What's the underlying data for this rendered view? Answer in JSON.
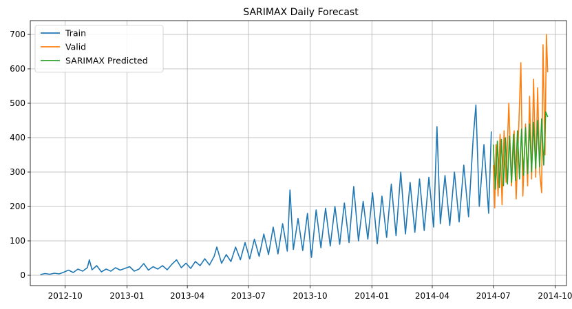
{
  "chart_data": {
    "type": "line",
    "title": "SARIMAX Daily Forecast",
    "xlabel": "",
    "ylabel": "",
    "x_type": "date",
    "xlim": [
      "2012-08-10",
      "2014-10-18"
    ],
    "ylim": [
      -30,
      740
    ],
    "grid": true,
    "legend_position": "top-left",
    "x_ticks": [
      "2012-10-01",
      "2013-01-01",
      "2013-04-01",
      "2013-07-01",
      "2013-10-01",
      "2014-01-01",
      "2014-04-01",
      "2014-07-01",
      "2014-10-01"
    ],
    "x_tick_labels": [
      "2012-10",
      "2013-01",
      "2013-04",
      "2013-07",
      "2013-10",
      "2014-01",
      "2014-04",
      "2014-07",
      "2014-10"
    ],
    "y_ticks": [
      0,
      100,
      200,
      300,
      400,
      500,
      600,
      700
    ],
    "y_tick_labels": [
      "0",
      "100",
      "200",
      "300",
      "400",
      "500",
      "600",
      "700"
    ],
    "series": [
      {
        "name": "Train",
        "color": "#1f77b4",
        "points": [
          [
            "2012-08-25",
            2
          ],
          [
            "2012-09-01",
            5
          ],
          [
            "2012-09-08",
            3
          ],
          [
            "2012-09-15",
            6
          ],
          [
            "2012-09-22",
            4
          ],
          [
            "2012-09-29",
            9
          ],
          [
            "2012-10-06",
            15
          ],
          [
            "2012-10-13",
            8
          ],
          [
            "2012-10-20",
            18
          ],
          [
            "2012-10-27",
            12
          ],
          [
            "2012-11-03",
            22
          ],
          [
            "2012-11-06",
            45
          ],
          [
            "2012-11-10",
            16
          ],
          [
            "2012-11-17",
            28
          ],
          [
            "2012-11-24",
            10
          ],
          [
            "2012-12-01",
            18
          ],
          [
            "2012-12-08",
            12
          ],
          [
            "2012-12-15",
            22
          ],
          [
            "2012-12-22",
            15
          ],
          [
            "2012-12-29",
            20
          ],
          [
            "2013-01-05",
            25
          ],
          [
            "2013-01-12",
            12
          ],
          [
            "2013-01-19",
            18
          ],
          [
            "2013-01-26",
            34
          ],
          [
            "2013-02-02",
            15
          ],
          [
            "2013-02-09",
            25
          ],
          [
            "2013-02-16",
            18
          ],
          [
            "2013-02-23",
            28
          ],
          [
            "2013-03-02",
            16
          ],
          [
            "2013-03-09",
            32
          ],
          [
            "2013-03-16",
            45
          ],
          [
            "2013-03-23",
            22
          ],
          [
            "2013-03-30",
            35
          ],
          [
            "2013-04-06",
            20
          ],
          [
            "2013-04-13",
            40
          ],
          [
            "2013-04-20",
            28
          ],
          [
            "2013-04-27",
            48
          ],
          [
            "2013-05-04",
            30
          ],
          [
            "2013-05-11",
            55
          ],
          [
            "2013-05-15",
            82
          ],
          [
            "2013-05-22",
            35
          ],
          [
            "2013-05-29",
            60
          ],
          [
            "2013-06-05",
            40
          ],
          [
            "2013-06-12",
            82
          ],
          [
            "2013-06-19",
            45
          ],
          [
            "2013-06-26",
            95
          ],
          [
            "2013-07-03",
            48
          ],
          [
            "2013-07-10",
            105
          ],
          [
            "2013-07-17",
            55
          ],
          [
            "2013-07-24",
            120
          ],
          [
            "2013-07-31",
            60
          ],
          [
            "2013-08-07",
            140
          ],
          [
            "2013-08-14",
            62
          ],
          [
            "2013-08-21",
            150
          ],
          [
            "2013-08-28",
            70
          ],
          [
            "2013-09-01",
            248
          ],
          [
            "2013-09-06",
            75
          ],
          [
            "2013-09-13",
            165
          ],
          [
            "2013-09-20",
            72
          ],
          [
            "2013-09-27",
            180
          ],
          [
            "2013-10-03",
            52
          ],
          [
            "2013-10-10",
            190
          ],
          [
            "2013-10-17",
            80
          ],
          [
            "2013-10-24",
            195
          ],
          [
            "2013-10-31",
            85
          ],
          [
            "2013-11-07",
            200
          ],
          [
            "2013-11-14",
            90
          ],
          [
            "2013-11-21",
            210
          ],
          [
            "2013-11-28",
            95
          ],
          [
            "2013-12-05",
            258
          ],
          [
            "2013-12-12",
            100
          ],
          [
            "2013-12-19",
            215
          ],
          [
            "2013-12-26",
            105
          ],
          [
            "2014-01-02",
            240
          ],
          [
            "2014-01-09",
            92
          ],
          [
            "2014-01-16",
            230
          ],
          [
            "2014-01-23",
            110
          ],
          [
            "2014-01-30",
            265
          ],
          [
            "2014-02-06",
            115
          ],
          [
            "2014-02-13",
            300
          ],
          [
            "2014-02-20",
            120
          ],
          [
            "2014-02-27",
            270
          ],
          [
            "2014-03-06",
            125
          ],
          [
            "2014-03-13",
            280
          ],
          [
            "2014-03-20",
            130
          ],
          [
            "2014-03-27",
            285
          ],
          [
            "2014-04-03",
            140
          ],
          [
            "2014-04-08",
            432
          ],
          [
            "2014-04-13",
            150
          ],
          [
            "2014-04-20",
            290
          ],
          [
            "2014-04-27",
            145
          ],
          [
            "2014-05-04",
            300
          ],
          [
            "2014-05-11",
            155
          ],
          [
            "2014-05-18",
            320
          ],
          [
            "2014-05-25",
            170
          ],
          [
            "2014-06-01",
            400
          ],
          [
            "2014-06-05",
            495
          ],
          [
            "2014-06-10",
            200
          ],
          [
            "2014-06-17",
            380
          ],
          [
            "2014-06-24",
            180
          ],
          [
            "2014-06-28",
            418
          ]
        ]
      },
      {
        "name": "Valid",
        "color": "#ff7f0e",
        "points": [
          [
            "2014-07-01",
            320
          ],
          [
            "2014-07-03",
            196
          ],
          [
            "2014-07-05",
            380
          ],
          [
            "2014-07-08",
            230
          ],
          [
            "2014-07-11",
            410
          ],
          [
            "2014-07-14",
            205
          ],
          [
            "2014-07-17",
            420
          ],
          [
            "2014-07-20",
            270
          ],
          [
            "2014-07-24",
            500
          ],
          [
            "2014-07-28",
            260
          ],
          [
            "2014-08-01",
            420
          ],
          [
            "2014-08-04",
            222
          ],
          [
            "2014-08-08",
            440
          ],
          [
            "2014-08-11",
            618
          ],
          [
            "2014-08-14",
            230
          ],
          [
            "2014-08-18",
            440
          ],
          [
            "2014-08-21",
            260
          ],
          [
            "2014-08-24",
            520
          ],
          [
            "2014-08-27",
            280
          ],
          [
            "2014-08-30",
            570
          ],
          [
            "2014-09-02",
            285
          ],
          [
            "2014-09-05",
            545
          ],
          [
            "2014-09-08",
            300
          ],
          [
            "2014-09-11",
            240
          ],
          [
            "2014-09-13",
            670
          ],
          [
            "2014-09-16",
            350
          ],
          [
            "2014-09-18",
            700
          ],
          [
            "2014-09-20",
            590
          ]
        ]
      },
      {
        "name": "SARIMAX Predicted",
        "color": "#2ca02c",
        "points": [
          [
            "2014-07-01",
            380
          ],
          [
            "2014-07-04",
            250
          ],
          [
            "2014-07-07",
            390
          ],
          [
            "2014-07-10",
            255
          ],
          [
            "2014-07-13",
            395
          ],
          [
            "2014-07-16",
            260
          ],
          [
            "2014-07-19",
            400
          ],
          [
            "2014-07-22",
            265
          ],
          [
            "2014-07-25",
            405
          ],
          [
            "2014-07-28",
            270
          ],
          [
            "2014-07-31",
            410
          ],
          [
            "2014-08-03",
            275
          ],
          [
            "2014-08-06",
            420
          ],
          [
            "2014-08-09",
            280
          ],
          [
            "2014-08-12",
            425
          ],
          [
            "2014-08-15",
            290
          ],
          [
            "2014-08-18",
            430
          ],
          [
            "2014-08-21",
            295
          ],
          [
            "2014-08-24",
            440
          ],
          [
            "2014-08-27",
            300
          ],
          [
            "2014-08-30",
            445
          ],
          [
            "2014-09-02",
            310
          ],
          [
            "2014-09-05",
            450
          ],
          [
            "2014-09-08",
            315
          ],
          [
            "2014-09-11",
            455
          ],
          [
            "2014-09-14",
            320
          ],
          [
            "2014-09-17",
            475
          ],
          [
            "2014-09-20",
            460
          ]
        ]
      }
    ]
  }
}
